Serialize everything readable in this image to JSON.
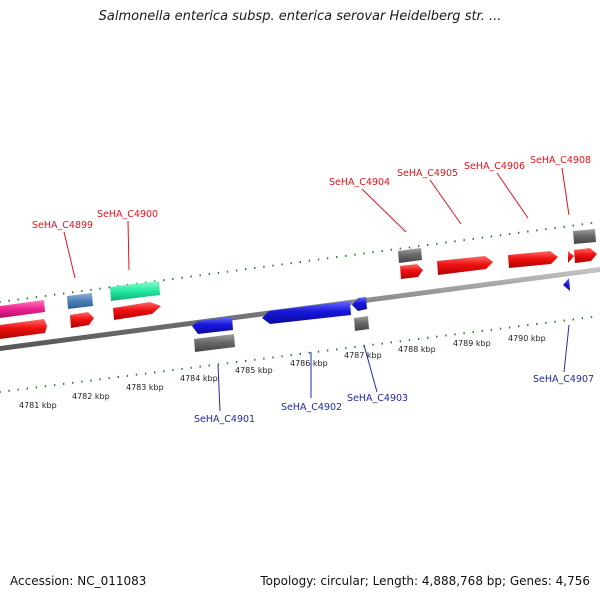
{
  "title": "Salmonella enterica subsp. enterica serovar Heidelberg str. ...",
  "footer": {
    "accession": "Accession: NC_011083",
    "summary": "Topology: circular; Length: 4,888,768 bp; Genes: 4,756"
  },
  "scale_labels": [
    "4781 kbp",
    "4782 kbp",
    "4783 kbp",
    "4784 kbp",
    "4785 kbp",
    "4786 kbp",
    "4787 kbp",
    "4788 kbp",
    "4789 kbp",
    "4790 kbp"
  ],
  "gene_labels_top": [
    "SeHA_C4899",
    "SeHA_C4900",
    "SeHA_C4904",
    "SeHA_C4905",
    "SeHA_C4906",
    "SeHA_C4908"
  ],
  "gene_labels_bottom": [
    "SeHA_C4901",
    "SeHA_C4902",
    "SeHA_C4903",
    "SeHA_C4907"
  ],
  "colors": {
    "forward": "#ee1111",
    "reverse": "#1818dd",
    "gray": "#6a6a6a",
    "steel": "#4a7fb5",
    "mint": "#22e8a0",
    "magenta": "#ee2290",
    "backbone": "#8c8c8c",
    "tick": "#2b7a2b"
  }
}
